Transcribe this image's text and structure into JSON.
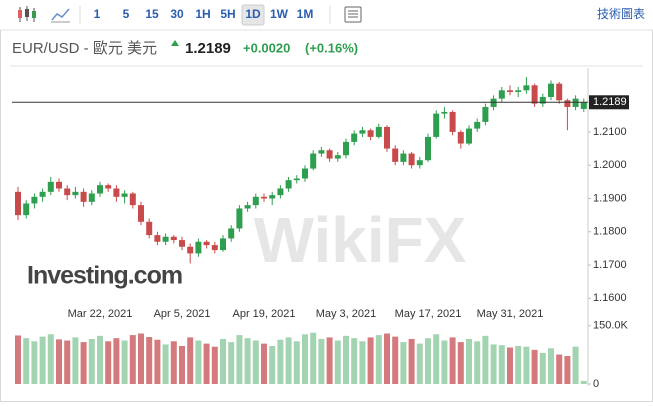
{
  "toolbar": {
    "intervals": [
      "1",
      "5",
      "15",
      "30",
      "1H",
      "5H",
      "1D",
      "1W",
      "1M"
    ],
    "selected_interval": "1D",
    "chart_link": "技術圖表"
  },
  "header": {
    "symbol": "EUR/USD - 歐元 美元",
    "change": "+0.0020",
    "change_percent": "(+0.16%)"
  },
  "chart_data": {
    "type": "candlestick",
    "last_price": 1.2189,
    "logo": "Investing.com",
    "watermark": "WikiFX",
    "up_color": "#2e9e4f",
    "down_color": "#c94a4a",
    "volume_up_color": "#a3d4b1",
    "volume_down_color": "#d47a7c",
    "categories": [
      null,
      null,
      null,
      null,
      null,
      null,
      null,
      null,
      null,
      null,
      "Mar 22, 2021",
      null,
      null,
      null,
      null,
      null,
      null,
      null,
      null,
      null,
      "Apr 5, 2021",
      null,
      null,
      null,
      null,
      null,
      null,
      null,
      null,
      null,
      "Apr 19, 2021",
      null,
      null,
      null,
      null,
      null,
      null,
      null,
      null,
      null,
      "May 3, 2021",
      null,
      null,
      null,
      null,
      null,
      null,
      null,
      null,
      null,
      "May 17, 2021",
      null,
      null,
      null,
      null,
      null,
      null,
      null,
      null,
      null,
      "May 31, 2021",
      null,
      null,
      null,
      null,
      null,
      null,
      null,
      null,
      null
    ],
    "ohlc": [
      [
        1.192,
        1.1935,
        1.1835,
        1.185
      ],
      [
        1.185,
        1.1895,
        1.184,
        1.1885
      ],
      [
        1.1885,
        1.1915,
        1.187,
        1.1905
      ],
      [
        1.1905,
        1.193,
        1.189,
        1.192
      ],
      [
        1.192,
        1.1965,
        1.191,
        1.195
      ],
      [
        1.195,
        1.196,
        1.192,
        1.193
      ],
      [
        1.193,
        1.194,
        1.1895,
        1.191
      ],
      [
        1.191,
        1.1935,
        1.19,
        1.192
      ],
      [
        1.192,
        1.193,
        1.1875,
        1.189
      ],
      [
        1.189,
        1.1925,
        1.188,
        1.1915
      ],
      [
        1.1915,
        1.195,
        1.1905,
        1.194
      ],
      [
        1.194,
        1.1945,
        1.192,
        1.193
      ],
      [
        1.193,
        1.194,
        1.189,
        1.1905
      ],
      [
        1.1905,
        1.1925,
        1.1885,
        1.1915
      ],
      [
        1.1915,
        1.192,
        1.187,
        1.188
      ],
      [
        1.188,
        1.189,
        1.182,
        1.183
      ],
      [
        1.183,
        1.184,
        1.178,
        1.179
      ],
      [
        1.179,
        1.18,
        1.176,
        1.177
      ],
      [
        1.177,
        1.1795,
        1.176,
        1.1785
      ],
      [
        1.1785,
        1.179,
        1.1765,
        1.1775
      ],
      [
        1.1775,
        1.1785,
        1.1745,
        1.1755
      ],
      [
        1.1755,
        1.1765,
        1.1705,
        1.1735
      ],
      [
        1.1735,
        1.178,
        1.1725,
        1.177
      ],
      [
        1.177,
        1.1775,
        1.175,
        1.176
      ],
      [
        1.176,
        1.177,
        1.1735,
        1.1745
      ],
      [
        1.1745,
        1.179,
        1.174,
        1.178
      ],
      [
        1.178,
        1.182,
        1.177,
        1.181
      ],
      [
        1.181,
        1.188,
        1.18,
        1.187
      ],
      [
        1.187,
        1.189,
        1.186,
        1.188
      ],
      [
        1.188,
        1.1915,
        1.187,
        1.1905
      ],
      [
        1.1905,
        1.1915,
        1.189,
        1.19
      ],
      [
        1.19,
        1.192,
        1.188,
        1.191
      ],
      [
        1.191,
        1.194,
        1.19,
        1.193
      ],
      [
        1.193,
        1.1965,
        1.192,
        1.1955
      ],
      [
        1.1955,
        1.197,
        1.1945,
        1.196
      ],
      [
        1.196,
        1.2,
        1.195,
        1.199
      ],
      [
        1.199,
        1.2045,
        1.1985,
        1.2035
      ],
      [
        1.2035,
        1.2055,
        1.2025,
        1.2045
      ],
      [
        1.2045,
        1.205,
        1.201,
        1.202
      ],
      [
        1.202,
        1.204,
        1.201,
        1.203
      ],
      [
        1.203,
        1.208,
        1.202,
        1.207
      ],
      [
        1.207,
        1.2105,
        1.206,
        1.2095
      ],
      [
        1.2095,
        1.2115,
        1.2085,
        1.2105
      ],
      [
        1.2105,
        1.211,
        1.2075,
        1.2085
      ],
      [
        1.2085,
        1.2125,
        1.208,
        1.2115
      ],
      [
        1.2115,
        1.212,
        1.204,
        1.205
      ],
      [
        1.205,
        1.206,
        1.2,
        1.201
      ],
      [
        1.201,
        1.2045,
        1.2,
        1.2035
      ],
      [
        1.2035,
        1.204,
        1.199,
        1.2
      ],
      [
        1.2,
        1.2025,
        1.199,
        1.2015
      ],
      [
        1.2015,
        1.2095,
        1.201,
        1.2085
      ],
      [
        1.2085,
        1.2165,
        1.208,
        1.2155
      ],
      [
        1.2155,
        1.2175,
        1.214,
        1.216
      ],
      [
        1.216,
        1.2165,
        1.209,
        1.21
      ],
      [
        1.21,
        1.2105,
        1.205,
        1.2065
      ],
      [
        1.2065,
        1.212,
        1.206,
        1.211
      ],
      [
        1.211,
        1.214,
        1.21,
        1.213
      ],
      [
        1.213,
        1.2185,
        1.212,
        1.2175
      ],
      [
        1.2175,
        1.221,
        1.2165,
        1.22
      ],
      [
        1.22,
        1.2235,
        1.219,
        1.2225
      ],
      [
        1.2225,
        1.224,
        1.221,
        1.222
      ],
      [
        1.222,
        1.2235,
        1.2205,
        1.2225
      ],
      [
        1.2225,
        1.2265,
        1.2215,
        1.224
      ],
      [
        1.224,
        1.2245,
        1.2175,
        1.2185
      ],
      [
        1.2185,
        1.2215,
        1.2175,
        1.2205
      ],
      [
        1.2205,
        1.2255,
        1.2195,
        1.2245
      ],
      [
        1.2245,
        1.225,
        1.2185,
        1.2195
      ],
      [
        1.2195,
        1.22,
        1.2105,
        1.2175
      ],
      [
        1.2175,
        1.221,
        1.2165,
        1.22
      ],
      [
        1.2169,
        1.22,
        1.216,
        1.2189
      ]
    ],
    "volume": [
      125000,
      118000,
      110000,
      122000,
      128000,
      115000,
      112000,
      120000,
      108000,
      116000,
      124000,
      110000,
      118000,
      112000,
      126000,
      130000,
      121000,
      114000,
      102000,
      110000,
      98000,
      120000,
      112000,
      104000,
      96000,
      116000,
      108000,
      126000,
      118000,
      112000,
      104000,
      98000,
      114000,
      120000,
      110000,
      128000,
      132000,
      116000,
      120000,
      112000,
      124000,
      118000,
      110000,
      120000,
      126000,
      130000,
      122000,
      108000,
      116000,
      104000,
      118000,
      128000,
      112000,
      120000,
      108000,
      116000,
      110000,
      124000,
      102000,
      100000,
      94000,
      98000,
      96000,
      88000,
      80000,
      92000,
      76000,
      72000,
      96000,
      8000
    ],
    "ylim": [
      1.158,
      1.228
    ],
    "yticks": [
      {
        "value": 1.16,
        "label": "1.1600"
      },
      {
        "value": 1.17,
        "label": "1.1700"
      },
      {
        "value": 1.18,
        "label": "1.1800"
      },
      {
        "value": 1.19,
        "label": "1.1900"
      },
      {
        "value": 1.2,
        "label": "1.2000"
      },
      {
        "value": 1.21,
        "label": "1.2100"
      }
    ],
    "volume_ylim": [
      0,
      170000
    ],
    "volume_yticks": [
      0,
      {
        "value": 150000,
        "label": "150.0K"
      }
    ]
  }
}
